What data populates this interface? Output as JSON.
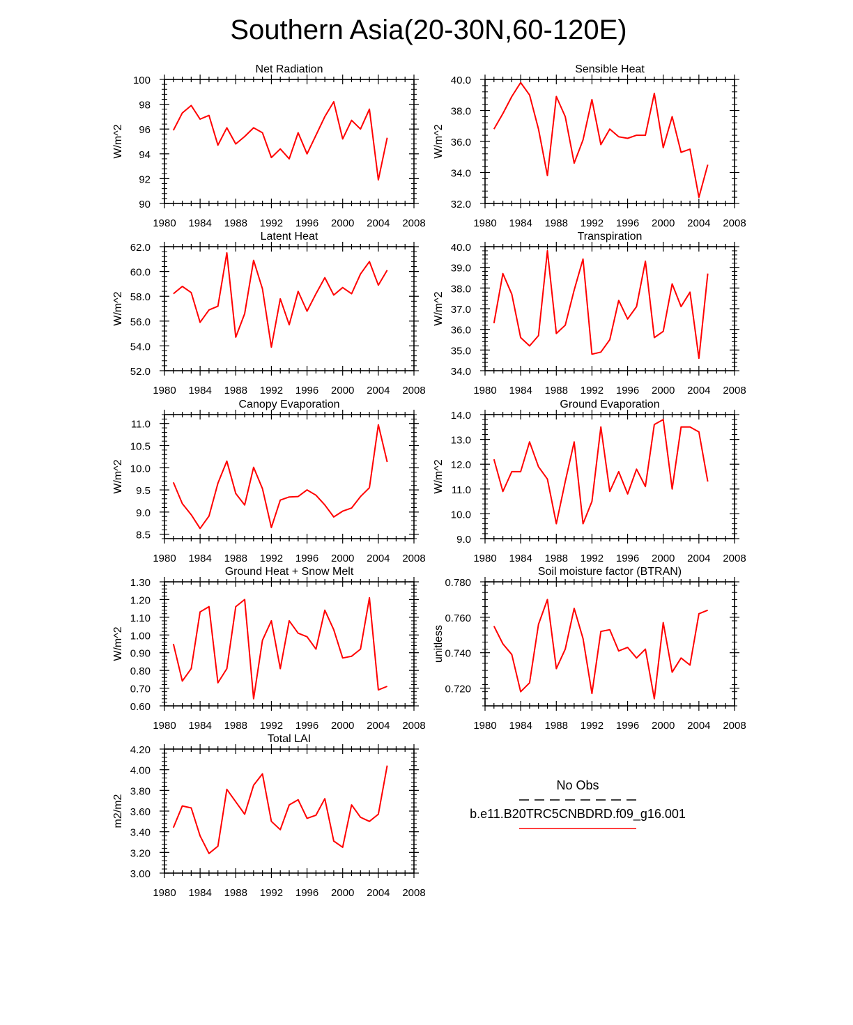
{
  "figure": {
    "title": "Southern Asia(20-30N,60-120E)",
    "legend": {
      "entries": [
        {
          "label": "No Obs",
          "style": "dashed",
          "color": "#000000"
        },
        {
          "label": "b.e11.B20TRC5CNBDRD.f09_g16.001",
          "style": "solid",
          "color": "#ff0000"
        }
      ]
    }
  },
  "chart_data": [
    {
      "type": "line",
      "title": "Net Radiation",
      "ylabel": "W/m^2",
      "xlim": [
        1980,
        2008
      ],
      "ylim": [
        90,
        100
      ],
      "xticks": [
        1980,
        1984,
        1988,
        1992,
        1996,
        2000,
        2004,
        2008
      ],
      "yticks": [
        90,
        92,
        94,
        96,
        98,
        100
      ],
      "ytick_labels": [
        "90",
        "92",
        "94",
        "96",
        "98",
        "100"
      ],
      "x": [
        1981,
        1982,
        1983,
        1984,
        1985,
        1986,
        1987,
        1988,
        1989,
        1990,
        1991,
        1992,
        1993,
        1994,
        1995,
        1996,
        1997,
        1998,
        1999,
        2000,
        2001,
        2002,
        2003,
        2004,
        2005
      ],
      "series": [
        {
          "name": "b.e11.B20TRC5CNBDRD.f09_g16.001",
          "color": "#ff0000",
          "values": [
            95.9,
            97.3,
            97.9,
            96.8,
            97.1,
            94.7,
            96.1,
            94.8,
            95.4,
            96.1,
            95.7,
            93.7,
            94.4,
            93.6,
            95.7,
            94.0,
            95.5,
            97.0,
            98.2,
            95.2,
            96.7,
            96.0,
            97.6,
            91.9,
            95.3
          ]
        }
      ]
    },
    {
      "type": "line",
      "title": "Sensible Heat",
      "ylabel": "W/m^2",
      "xlim": [
        1980,
        2008
      ],
      "ylim": [
        32,
        40
      ],
      "xticks": [
        1980,
        1984,
        1988,
        1992,
        1996,
        2000,
        2004,
        2008
      ],
      "yticks": [
        32,
        34,
        36,
        38,
        40
      ],
      "ytick_labels": [
        "32.0",
        "34.0",
        "36.0",
        "38.0",
        "40.0"
      ],
      "x": [
        1981,
        1982,
        1983,
        1984,
        1985,
        1986,
        1987,
        1988,
        1989,
        1990,
        1991,
        1992,
        1993,
        1994,
        1995,
        1996,
        1997,
        1998,
        1999,
        2000,
        2001,
        2002,
        2003,
        2004,
        2005
      ],
      "series": [
        {
          "name": "b.e11.B20TRC5CNBDRD.f09_g16.001",
          "color": "#ff0000",
          "values": [
            36.8,
            37.8,
            38.9,
            39.8,
            39.0,
            36.8,
            33.8,
            38.9,
            37.6,
            34.6,
            36.1,
            38.7,
            35.8,
            36.8,
            36.3,
            36.2,
            36.4,
            36.4,
            39.1,
            35.6,
            37.6,
            35.3,
            35.5,
            32.4,
            34.5
          ]
        }
      ]
    },
    {
      "type": "line",
      "title": "Latent Heat",
      "ylabel": "W/m^2",
      "xlim": [
        1980,
        2008
      ],
      "ylim": [
        52,
        62
      ],
      "xticks": [
        1980,
        1984,
        1988,
        1992,
        1996,
        2000,
        2004,
        2008
      ],
      "yticks": [
        52,
        54,
        56,
        58,
        60,
        62
      ],
      "ytick_labels": [
        "52.0",
        "54.0",
        "56.0",
        "58.0",
        "60.0",
        "62.0"
      ],
      "x": [
        1981,
        1982,
        1983,
        1984,
        1985,
        1986,
        1987,
        1988,
        1989,
        1990,
        1991,
        1992,
        1993,
        1994,
        1995,
        1996,
        1997,
        1998,
        1999,
        2000,
        2001,
        2002,
        2003,
        2004,
        2005
      ],
      "series": [
        {
          "name": "b.e11.B20TRC5CNBDRD.f09_g16.001",
          "color": "#ff0000",
          "values": [
            58.2,
            58.8,
            58.3,
            55.9,
            56.9,
            57.2,
            61.5,
            54.7,
            56.6,
            60.9,
            58.6,
            53.9,
            57.8,
            55.7,
            58.4,
            56.8,
            58.2,
            59.5,
            58.1,
            58.7,
            58.2,
            59.8,
            60.8,
            58.9,
            60.1
          ]
        }
      ]
    },
    {
      "type": "line",
      "title": "Transpiration",
      "ylabel": "W/m^2",
      "xlim": [
        1980,
        2008
      ],
      "ylim": [
        34,
        40
      ],
      "xticks": [
        1980,
        1984,
        1988,
        1992,
        1996,
        2000,
        2004,
        2008
      ],
      "yticks": [
        34,
        35,
        36,
        37,
        38,
        39,
        40
      ],
      "ytick_labels": [
        "34.0",
        "35.0",
        "36.0",
        "37.0",
        "38.0",
        "39.0",
        "40.0"
      ],
      "x": [
        1981,
        1982,
        1983,
        1984,
        1985,
        1986,
        1987,
        1988,
        1989,
        1990,
        1991,
        1992,
        1993,
        1994,
        1995,
        1996,
        1997,
        1998,
        1999,
        2000,
        2001,
        2002,
        2003,
        2004,
        2005
      ],
      "series": [
        {
          "name": "b.e11.B20TRC5CNBDRD.f09_g16.001",
          "color": "#ff0000",
          "values": [
            36.3,
            38.7,
            37.7,
            35.6,
            35.2,
            35.7,
            39.8,
            35.8,
            36.2,
            37.9,
            39.4,
            34.8,
            34.9,
            35.5,
            37.4,
            36.5,
            37.1,
            39.3,
            35.6,
            35.9,
            38.2,
            37.1,
            37.8,
            34.6,
            38.7
          ]
        }
      ]
    },
    {
      "type": "line",
      "title": "Canopy Evaporation",
      "ylabel": "W/m^2",
      "xlim": [
        1980,
        2008
      ],
      "ylim": [
        8.4,
        11.2
      ],
      "xticks": [
        1980,
        1984,
        1988,
        1992,
        1996,
        2000,
        2004,
        2008
      ],
      "yticks": [
        8.5,
        9.0,
        9.5,
        10.0,
        10.5,
        11.0
      ],
      "ytick_labels": [
        "8.5",
        "9.0",
        "9.5",
        "10.0",
        "10.5",
        "11.0"
      ],
      "x": [
        1981,
        1982,
        1983,
        1984,
        1985,
        1986,
        1987,
        1988,
        1989,
        1990,
        1991,
        1992,
        1993,
        1994,
        1995,
        1996,
        1997,
        1998,
        1999,
        2000,
        2001,
        2002,
        2003,
        2004,
        2005
      ],
      "series": [
        {
          "name": "b.e11.B20TRC5CNBDRD.f09_g16.001",
          "color": "#ff0000",
          "values": [
            9.67,
            9.19,
            8.94,
            8.63,
            8.91,
            9.65,
            10.15,
            9.42,
            9.16,
            10.01,
            9.53,
            8.65,
            9.27,
            9.34,
            9.35,
            9.5,
            9.38,
            9.16,
            8.89,
            9.02,
            9.09,
            9.35,
            9.55,
            10.97,
            10.13
          ]
        }
      ]
    },
    {
      "type": "line",
      "title": "Ground Evaporation",
      "ylabel": "W/m^2",
      "xlim": [
        1980,
        2008
      ],
      "ylim": [
        9,
        14
      ],
      "xticks": [
        1980,
        1984,
        1988,
        1992,
        1996,
        2000,
        2004,
        2008
      ],
      "yticks": [
        9,
        10,
        11,
        12,
        13,
        14
      ],
      "ytick_labels": [
        "9.0",
        "10.0",
        "11.0",
        "12.0",
        "13.0",
        "14.0"
      ],
      "x": [
        1981,
        1982,
        1983,
        1984,
        1985,
        1986,
        1987,
        1988,
        1989,
        1990,
        1991,
        1992,
        1993,
        1994,
        1995,
        1996,
        1997,
        1998,
        1999,
        2000,
        2001,
        2002,
        2003,
        2004,
        2005
      ],
      "series": [
        {
          "name": "b.e11.B20TRC5CNBDRD.f09_g16.001",
          "color": "#ff0000",
          "values": [
            12.2,
            10.9,
            11.7,
            11.7,
            12.9,
            11.9,
            11.4,
            9.6,
            11.3,
            12.9,
            9.6,
            10.5,
            13.5,
            10.9,
            11.7,
            10.8,
            11.8,
            11.1,
            13.6,
            13.8,
            11.0,
            13.5,
            13.5,
            13.3,
            11.3
          ]
        }
      ]
    },
    {
      "type": "line",
      "title": "Ground Heat + Snow Melt",
      "ylabel": "W/m^2",
      "xlim": [
        1980,
        2008
      ],
      "ylim": [
        0.6,
        1.3
      ],
      "xticks": [
        1980,
        1984,
        1988,
        1992,
        1996,
        2000,
        2004,
        2008
      ],
      "yticks": [
        0.6,
        0.7,
        0.8,
        0.9,
        1.0,
        1.1,
        1.2,
        1.3
      ],
      "ytick_labels": [
        "0.60",
        "0.70",
        "0.80",
        "0.90",
        "1.00",
        "1.10",
        "1.20",
        "1.30"
      ],
      "x": [
        1981,
        1982,
        1983,
        1984,
        1985,
        1986,
        1987,
        1988,
        1989,
        1990,
        1991,
        1992,
        1993,
        1994,
        1995,
        1996,
        1997,
        1998,
        1999,
        2000,
        2001,
        2002,
        2003,
        2004,
        2005
      ],
      "series": [
        {
          "name": "b.e11.B20TRC5CNBDRD.f09_g16.001",
          "color": "#ff0000",
          "values": [
            0.95,
            0.74,
            0.81,
            1.13,
            1.16,
            0.73,
            0.81,
            1.16,
            1.2,
            0.64,
            0.97,
            1.08,
            0.81,
            1.08,
            1.01,
            0.99,
            0.92,
            1.14,
            1.03,
            0.87,
            0.88,
            0.92,
            1.21,
            0.69,
            0.71
          ]
        }
      ]
    },
    {
      "type": "line",
      "title": "Soil moisture factor (BTRAN)",
      "ylabel": "unitless",
      "xlim": [
        1980,
        2008
      ],
      "ylim": [
        0.71,
        0.78
      ],
      "xticks": [
        1980,
        1984,
        1988,
        1992,
        1996,
        2000,
        2004,
        2008
      ],
      "yticks": [
        0.72,
        0.74,
        0.76,
        0.78
      ],
      "ytick_labels": [
        "0.720",
        "0.740",
        "0.760",
        "0.780"
      ],
      "x": [
        1981,
        1982,
        1983,
        1984,
        1985,
        1986,
        1987,
        1988,
        1989,
        1990,
        1991,
        1992,
        1993,
        1994,
        1995,
        1996,
        1997,
        1998,
        1999,
        2000,
        2001,
        2002,
        2003,
        2004,
        2005
      ],
      "series": [
        {
          "name": "b.e11.B20TRC5CNBDRD.f09_g16.001",
          "color": "#ff0000",
          "values": [
            0.755,
            0.745,
            0.739,
            0.718,
            0.723,
            0.756,
            0.77,
            0.731,
            0.742,
            0.765,
            0.748,
            0.717,
            0.752,
            0.753,
            0.741,
            0.743,
            0.737,
            0.742,
            0.714,
            0.757,
            0.729,
            0.737,
            0.733,
            0.762,
            0.764
          ]
        }
      ]
    },
    {
      "type": "line",
      "title": "Total LAI",
      "ylabel": "m2/m2",
      "xlim": [
        1980,
        2008
      ],
      "ylim": [
        3.0,
        4.2
      ],
      "xticks": [
        1980,
        1984,
        1988,
        1992,
        1996,
        2000,
        2004,
        2008
      ],
      "yticks": [
        3.0,
        3.2,
        3.4,
        3.6,
        3.8,
        4.0,
        4.2
      ],
      "ytick_labels": [
        "3.00",
        "3.20",
        "3.40",
        "3.60",
        "3.80",
        "4.00",
        "4.20"
      ],
      "x": [
        1981,
        1982,
        1983,
        1984,
        1985,
        1986,
        1987,
        1988,
        1989,
        1990,
        1991,
        1992,
        1993,
        1994,
        1995,
        1996,
        1997,
        1998,
        1999,
        2000,
        2001,
        2002,
        2003,
        2004,
        2005
      ],
      "series": [
        {
          "name": "b.e11.B20TRC5CNBDRD.f09_g16.001",
          "color": "#ff0000",
          "values": [
            3.44,
            3.65,
            3.63,
            3.36,
            3.19,
            3.26,
            3.81,
            3.69,
            3.57,
            3.85,
            3.96,
            3.5,
            3.42,
            3.66,
            3.71,
            3.53,
            3.56,
            3.72,
            3.31,
            3.25,
            3.66,
            3.54,
            3.5,
            3.57,
            4.04
          ]
        }
      ]
    }
  ]
}
